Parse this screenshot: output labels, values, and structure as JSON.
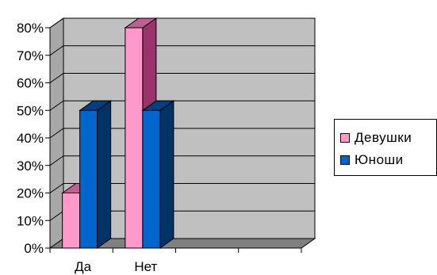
{
  "chart_data": {
    "type": "bar",
    "categories": [
      "Да",
      "Нет"
    ],
    "series": [
      {
        "name": "Девушки",
        "values": [
          20,
          80
        ],
        "color": "#ff99cc",
        "top_color": "#c06090",
        "side_color": "#99336a"
      },
      {
        "name": "Юноши",
        "values": [
          50,
          50
        ],
        "color": "#0066cc",
        "top_color": "#003f80",
        "side_color": "#003366"
      }
    ],
    "y_tick_labels": [
      "0%",
      "10%",
      "20%",
      "30%",
      "40%",
      "50%",
      "60%",
      "70%",
      "80%"
    ],
    "ylim": [
      0,
      80
    ],
    "grid": true,
    "three_d": true,
    "plot_background": "#c0c0c0",
    "legend_position": "right"
  }
}
